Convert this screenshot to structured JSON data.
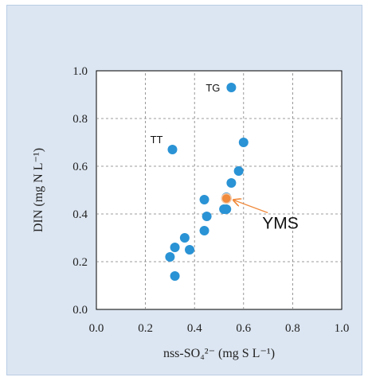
{
  "chart_data": {
    "type": "scatter",
    "xlabel": "nss-SO₄²⁻ (mg S L⁻¹)",
    "ylabel": "DIN (mg N L⁻¹)",
    "xlim": [
      0.0,
      1.0
    ],
    "ylim": [
      0.0,
      1.0
    ],
    "xticks": [
      "0.0",
      "0.2",
      "0.4",
      "0.6",
      "0.8",
      "1.0"
    ],
    "yticks": [
      "0.0",
      "0.2",
      "0.4",
      "0.6",
      "0.8",
      "1.0"
    ],
    "grid": true,
    "colors": {
      "default": "#2a93d5",
      "highlight": "#f08a3c"
    },
    "series": [
      {
        "values": [
          {
            "x": 0.55,
            "y": 0.93
          },
          {
            "x": 0.31,
            "y": 0.67
          },
          {
            "x": 0.6,
            "y": 0.7
          },
          {
            "x": 0.58,
            "y": 0.58
          },
          {
            "x": 0.55,
            "y": 0.53
          },
          {
            "x": 0.44,
            "y": 0.46
          },
          {
            "x": 0.53,
            "y": 0.47
          },
          {
            "x": 0.52,
            "y": 0.42
          },
          {
            "x": 0.53,
            "y": 0.42
          },
          {
            "x": 0.45,
            "y": 0.39
          },
          {
            "x": 0.44,
            "y": 0.33
          },
          {
            "x": 0.36,
            "y": 0.3
          },
          {
            "x": 0.32,
            "y": 0.26
          },
          {
            "x": 0.38,
            "y": 0.25
          },
          {
            "x": 0.3,
            "y": 0.22
          },
          {
            "x": 0.32,
            "y": 0.14
          }
        ]
      },
      {
        "values": [
          {
            "x": 0.53,
            "y": 0.465
          }
        ]
      }
    ],
    "annotations": [
      {
        "text": "TG",
        "x": 0.55,
        "y": 0.93
      },
      {
        "text": "TT",
        "x": 0.31,
        "y": 0.67
      },
      {
        "text": "YMS",
        "x": 0.53,
        "y": 0.465
      }
    ]
  }
}
